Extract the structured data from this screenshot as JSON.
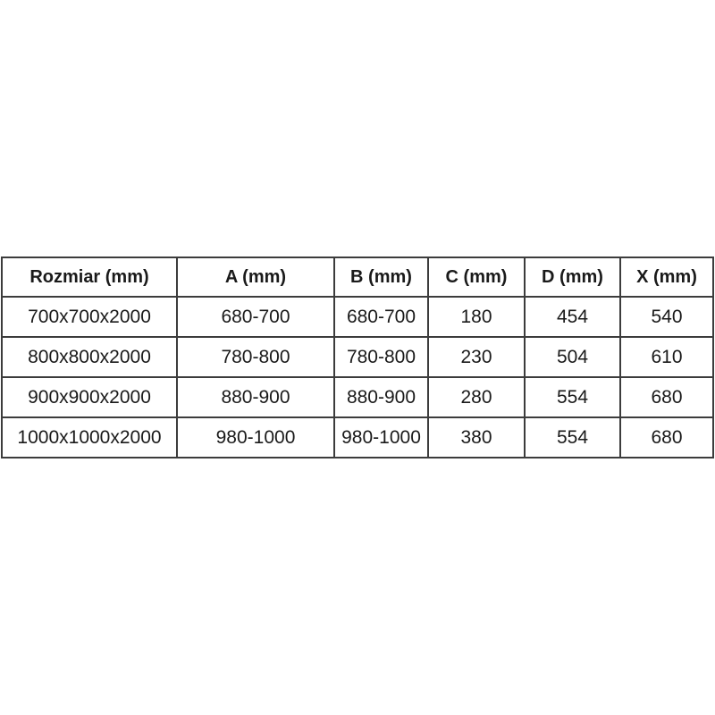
{
  "page": {
    "background_color": "#ffffff",
    "border_color": "#3c3c3c",
    "text_color": "#1a1a1a"
  },
  "chart_data": {
    "type": "table",
    "title": "",
    "columns": [
      "Rozmiar (mm)",
      "A (mm)",
      "B (mm)",
      "C (mm)",
      "D (mm)",
      "X (mm)"
    ],
    "rows": [
      [
        "700x700x2000",
        "680-700",
        "680-700",
        "180",
        "454",
        "540"
      ],
      [
        "800x800x2000",
        "780-800",
        "780-800",
        "230",
        "504",
        "610"
      ],
      [
        "900x900x2000",
        "880-900",
        "880-900",
        "280",
        "554",
        "680"
      ],
      [
        "1000x1000x2000",
        "980-1000",
        "980-1000",
        "380",
        "554",
        "680"
      ]
    ]
  }
}
